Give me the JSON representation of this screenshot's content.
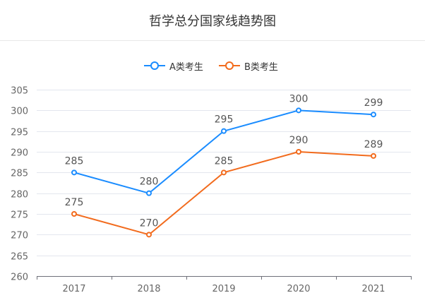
{
  "chart_data": {
    "type": "line",
    "title": "哲学总分国家线趋势图",
    "categories": [
      "2017",
      "2018",
      "2019",
      "2020",
      "2021"
    ],
    "series": [
      {
        "name": "A类考生",
        "color": "#1a8cff",
        "values": [
          285,
          280,
          295,
          300,
          299
        ]
      },
      {
        "name": "B类考生",
        "color": "#f26b1d",
        "values": [
          275,
          270,
          285,
          290,
          289
        ]
      }
    ],
    "ylim": [
      260,
      305
    ],
    "yticks": [
      "260",
      "265",
      "270",
      "275",
      "280",
      "285",
      "290",
      "295",
      "300",
      "305"
    ],
    "grid": true,
    "legend_position": "top-center",
    "data_labels": true
  }
}
